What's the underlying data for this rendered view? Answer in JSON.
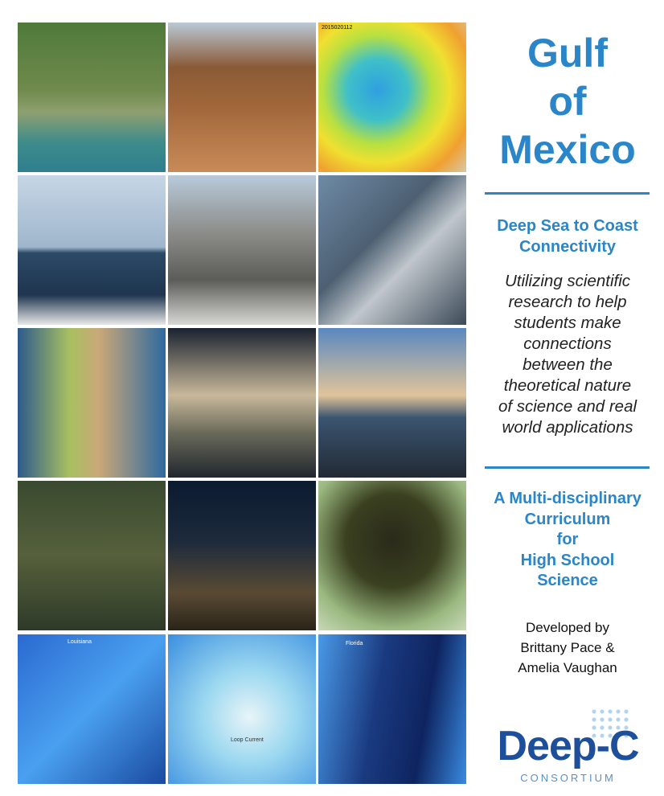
{
  "cover": {
    "title_lines": [
      "Gulf",
      "of",
      "Mexico"
    ],
    "subtitle_lines": [
      "Deep Sea to Coast",
      "Connectivity"
    ],
    "description_lines": [
      "Utilizing scientific",
      "research to help",
      "students make",
      "connections",
      "between the",
      "theoretical nature",
      "of science and real",
      "world applications"
    ],
    "curriculum_lines": [
      "A Multi-disciplinary",
      "Curriculum",
      "for",
      "High School",
      "Science"
    ],
    "credits_lines": [
      "Developed by",
      "Brittany Pace &",
      "Amelia Vaughan"
    ],
    "logo": {
      "name": "Deep-C",
      "tagline": "CONSORTIUM"
    },
    "image_labels": {
      "sst_date": "2015020112",
      "map_left": "Louisiana",
      "map_center": "Loop Current",
      "map_right": "Florida"
    }
  }
}
